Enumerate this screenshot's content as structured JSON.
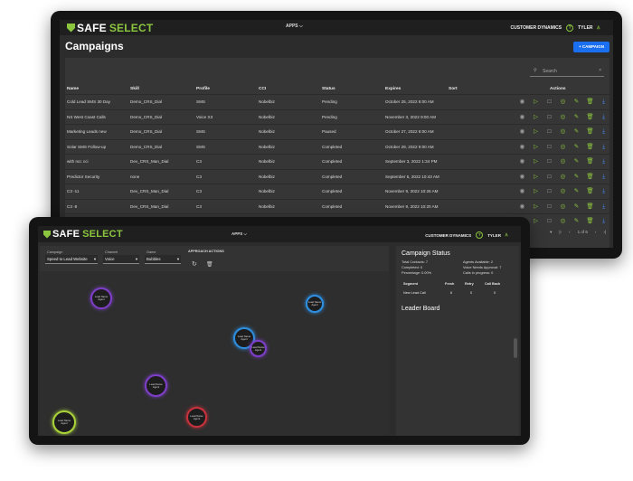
{
  "brand": {
    "word1": "SAFE",
    "word2": "SELECT"
  },
  "nav": {
    "apps": "APPS",
    "apps_caret": "⌵",
    "account": "CUSTOMER DYNAMICS",
    "help": "?",
    "user": "TYLER",
    "user_icon": "♙"
  },
  "campaigns": {
    "title": "Campaigns",
    "add_button": "+ CAMPAIGN",
    "search_placeholder": "Search",
    "search_icon": "⚲",
    "clear_icon": "×",
    "columns": [
      "Name",
      "Skill",
      "Profile",
      "CCI",
      "Status",
      "Expires",
      "Sort",
      "Actions"
    ],
    "rows": [
      {
        "name": "Cold Lead SMS 30 Day",
        "skill": "Demo_CRS_Dial",
        "profile": "SMS",
        "cci": "Nobelbiz",
        "status": "Pending",
        "expires": "October 25, 2022 8:00 AM"
      },
      {
        "name": "NS West Coast Calls",
        "skill": "Demo_CRS_Dial",
        "profile": "Voice X3",
        "cci": "Nobelbiz",
        "status": "Pending",
        "expires": "November 3, 2022 9:00 AM"
      },
      {
        "name": "Marketing Leads new",
        "skill": "Demo_CRS_Dial",
        "profile": "SMS",
        "cci": "Nobelbiz",
        "status": "Paused",
        "expires": "October 27, 2022 8:00 AM"
      },
      {
        "name": "Solar SMS Follow-up",
        "skill": "Demo_CRS_Dial",
        "profile": "SMS",
        "cci": "Nobelbiz",
        "status": "Completed",
        "expires": "October 29, 2022 9:00 AM"
      },
      {
        "name": "with ncc cci",
        "skill": "Dev_CRS_Man_Dial",
        "profile": "C3",
        "cci": "Nobelbiz",
        "status": "Completed",
        "expires": "September 3, 2022 1:34 PM"
      },
      {
        "name": "Predictor Security",
        "skill": "none",
        "profile": "C3",
        "cci": "Nobelbiz",
        "status": "Completed",
        "expires": "September 5, 2022 10:43 AM"
      },
      {
        "name": "C3 -11",
        "skill": "Dev_CRS_Man_Dial",
        "profile": "C3",
        "cci": "Nobelbiz",
        "status": "Completed",
        "expires": "November 9, 2022 10:26 AM"
      },
      {
        "name": "C3 -8",
        "skill": "Dev_CRS_Man_Dial",
        "profile": "C3",
        "cci": "Nobelbiz",
        "status": "Completed",
        "expires": "November 9, 2022 10:20 AM"
      },
      {
        "name": "C3 -7",
        "skill": "Dev_CRS_Man_Dial",
        "profile": "C3",
        "cci": "Nobelbiz",
        "status": "Completed",
        "expires": "June 9, 2022 10:38 AM"
      }
    ],
    "action_icons": [
      "◉",
      "▷",
      "□",
      "◎",
      "✎",
      "🗑",
      "⤓"
    ],
    "action_colors": [
      "#9a9a9a",
      "#8cc63f",
      "#bbbbbb",
      "#8cc63f",
      "#8cc63f",
      "#8cc63f",
      "#4a8cff"
    ],
    "pager": {
      "caret": "▾",
      "text": "1 of 6",
      "first": "|‹",
      "prev": "‹",
      "next": "›",
      "last": "›|"
    }
  },
  "monitor": {
    "filters": [
      {
        "label": "Campaign",
        "value": "Speed to Lead Website"
      },
      {
        "label": "Channel",
        "value": "Voice"
      },
      {
        "label": "Game",
        "value": "Bubbles"
      }
    ],
    "select_caret": "▾",
    "approach_label": "APPROACH ACTIONS",
    "refresh_icon": "↻",
    "delete_icon": "🗑",
    "bubbles": [
      {
        "label": "Lead Name Agent",
        "color": "#7d3ec8"
      },
      {
        "label": "Lead Name Agent",
        "color": "#2e8fe0"
      },
      {
        "label": "Lead Name Agent",
        "color": "#2e8fe0"
      },
      {
        "label": "Lead Name Agent",
        "color": "#7d3ec8"
      },
      {
        "label": "Lead Name Agent",
        "color": "#7d3ec8"
      },
      {
        "label": "Lead Name Agent",
        "color": "#c8323c"
      },
      {
        "label": "Lead Name Agent",
        "color": "#a8d13a"
      }
    ],
    "status": {
      "title": "Campaign Status",
      "total": "Total Contacts: 7",
      "completed": "Completed: 0",
      "percentage": "Percentage: 0.00%",
      "agents": "Agents Available: 2",
      "voice": "Voice Needs Approval: 7",
      "calls": "Calls in progress: 0",
      "headers": [
        "Segment",
        "Fresh",
        "Retry",
        "Call Back"
      ],
      "segment": {
        "name": "New Lead Call",
        "fresh": "6",
        "retry": "0",
        "callback": "0"
      }
    },
    "leaderboard": "Leader Board"
  }
}
